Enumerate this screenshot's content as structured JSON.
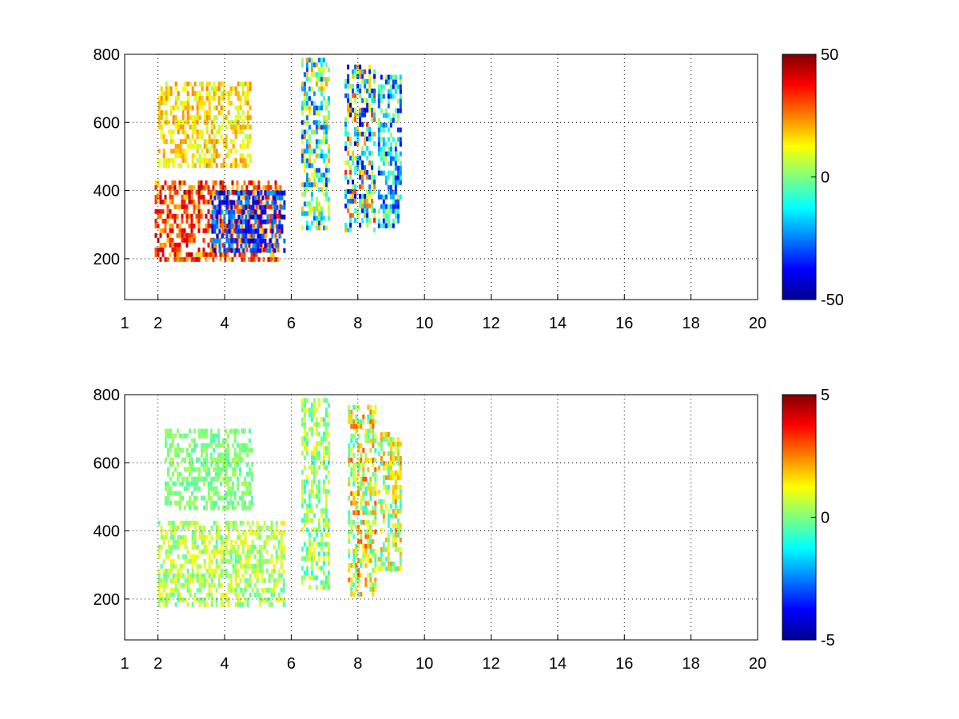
{
  "chart_data": [
    {
      "type": "heatmap",
      "title": "",
      "xlabel": "",
      "ylabel": "",
      "xlim": [
        1,
        20
      ],
      "ylim": [
        80,
        800
      ],
      "xticks": [
        1,
        2,
        4,
        6,
        8,
        10,
        12,
        14,
        16,
        18,
        20
      ],
      "xtick_labels": [
        "1",
        "2",
        "4",
        "6",
        "8",
        "10",
        "12",
        "14",
        "16",
        "18",
        "20"
      ],
      "yticks": [
        200,
        400,
        600,
        800
      ],
      "ytick_labels": [
        "200",
        "400",
        "600",
        "800"
      ],
      "grid": true,
      "colormap": "jet",
      "clim": [
        -50,
        50
      ],
      "colorbar_ticks": [
        -50,
        0,
        50
      ],
      "colorbar_labels": [
        "-50",
        "0",
        "50"
      ],
      "bands": [
        {
          "x": [
            1.9,
            5.7
          ],
          "y": [
            200,
            430
          ],
          "value_range": [
            15,
            45
          ]
        },
        {
          "x": [
            3.6,
            5.8
          ],
          "y": [
            230,
            400
          ],
          "value_range": [
            -45,
            -20
          ]
        },
        {
          "x": [
            2.0,
            4.8
          ],
          "y": [
            470,
            720
          ],
          "value_range": [
            5,
            25
          ]
        },
        {
          "x": [
            6.3,
            7.1
          ],
          "y": [
            290,
            790
          ],
          "value_range": [
            -35,
            25
          ]
        },
        {
          "x": [
            7.6,
            8.5
          ],
          "y": [
            280,
            770
          ],
          "value_range": [
            -45,
            35
          ]
        },
        {
          "x": [
            8.6,
            9.3
          ],
          "y": [
            290,
            740
          ],
          "value_range": [
            -40,
            5
          ]
        }
      ]
    },
    {
      "type": "heatmap",
      "title": "",
      "xlabel": "",
      "ylabel": "",
      "xlim": [
        1,
        20
      ],
      "ylim": [
        80,
        800
      ],
      "xticks": [
        1,
        2,
        4,
        6,
        8,
        10,
        12,
        14,
        16,
        18,
        20
      ],
      "xtick_labels": [
        "1",
        "2",
        "4",
        "6",
        "8",
        "10",
        "12",
        "14",
        "16",
        "18",
        "20"
      ],
      "yticks": [
        200,
        400,
        600,
        800
      ],
      "ytick_labels": [
        "200",
        "400",
        "600",
        "800"
      ],
      "grid": true,
      "colormap": "jet",
      "clim": [
        -5,
        5
      ],
      "colorbar_ticks": [
        -5,
        0,
        5
      ],
      "colorbar_labels": [
        "-5",
        "0",
        "5"
      ],
      "bands": [
        {
          "x": [
            2.0,
            5.8
          ],
          "y": [
            180,
            430
          ],
          "value_range": [
            -0.5,
            1.5
          ]
        },
        {
          "x": [
            2.2,
            4.8
          ],
          "y": [
            470,
            700
          ],
          "value_range": [
            -0.5,
            0.5
          ]
        },
        {
          "x": [
            6.3,
            7.1
          ],
          "y": [
            230,
            790
          ],
          "value_range": [
            -1,
            1.5
          ]
        },
        {
          "x": [
            7.7,
            8.5
          ],
          "y": [
            220,
            770
          ],
          "value_range": [
            -1,
            3
          ]
        },
        {
          "x": [
            8.6,
            9.3
          ],
          "y": [
            290,
            690
          ],
          "value_range": [
            -1,
            2.5
          ]
        }
      ]
    }
  ]
}
